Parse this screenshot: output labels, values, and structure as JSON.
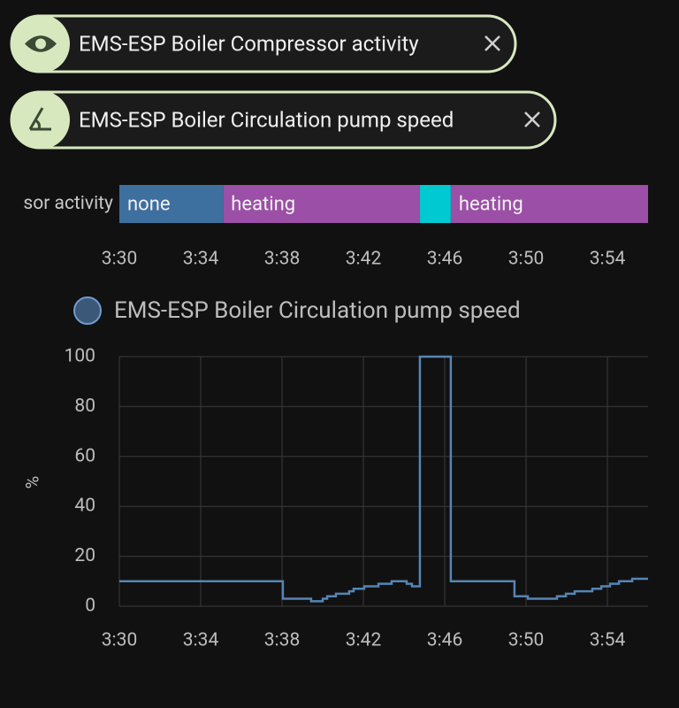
{
  "chips": [
    {
      "label": "EMS-ESP Boiler Compressor activity"
    },
    {
      "label": "EMS-ESP Boiler Circulation pump speed"
    }
  ],
  "chart_data": [
    {
      "type": "timeline",
      "row_label": "sor activity",
      "segments": [
        {
          "label": "none",
          "start": 210,
          "end": 215.1,
          "color": "#3d6f9f"
        },
        {
          "label": "heating",
          "start": 215.1,
          "end": 224.78,
          "color": "#9b4fa6"
        },
        {
          "label": null,
          "start": 224.78,
          "end": 226.3,
          "color": "#00c9d2"
        },
        {
          "label": "heating",
          "start": 226.3,
          "end": 236,
          "color": "#9b4fa6"
        }
      ],
      "xlim": [
        210,
        236
      ],
      "xticks": [
        {
          "value": 210,
          "label": "3:30"
        },
        {
          "value": 214,
          "label": "3:34"
        },
        {
          "value": 218,
          "label": "3:38"
        },
        {
          "value": 222,
          "label": "3:42"
        },
        {
          "value": 226,
          "label": "3:46"
        },
        {
          "value": 230,
          "label": "3:50"
        },
        {
          "value": 234,
          "label": "3:54"
        }
      ]
    },
    {
      "type": "line",
      "ylabel": "%",
      "series": [
        {
          "name": "EMS-ESP Boiler Circulation pump speed",
          "color": "#5585b5",
          "x": [
            210,
            218.04,
            219.43,
            220.0,
            220.22,
            220.65,
            221.3,
            221.52,
            222.04,
            222.74,
            223.39,
            224.13,
            224.39,
            224.78,
            226.3,
            229.43,
            230.09,
            231.52,
            231.96,
            232.39,
            233.26,
            233.7,
            234.13,
            234.57,
            235.22,
            236
          ],
          "values": [
            10,
            3,
            2,
            3,
            4,
            5,
            6,
            7,
            8,
            9,
            10,
            9,
            8,
            100,
            10,
            4,
            3,
            4,
            5,
            6,
            7,
            8,
            9,
            10,
            11,
            11
          ]
        }
      ],
      "xlim": [
        210,
        236
      ],
      "xticks": [
        {
          "value": 210,
          "label": "3:30"
        },
        {
          "value": 214,
          "label": "3:34"
        },
        {
          "value": 218,
          "label": "3:38"
        },
        {
          "value": 222,
          "label": "3:42"
        },
        {
          "value": 226,
          "label": "3:46"
        },
        {
          "value": 230,
          "label": "3:50"
        },
        {
          "value": 234,
          "label": "3:54"
        }
      ],
      "ylim": [
        0,
        100
      ],
      "yticks": [
        0,
        20,
        40,
        60,
        80,
        100
      ],
      "grid": true,
      "step": true
    }
  ]
}
